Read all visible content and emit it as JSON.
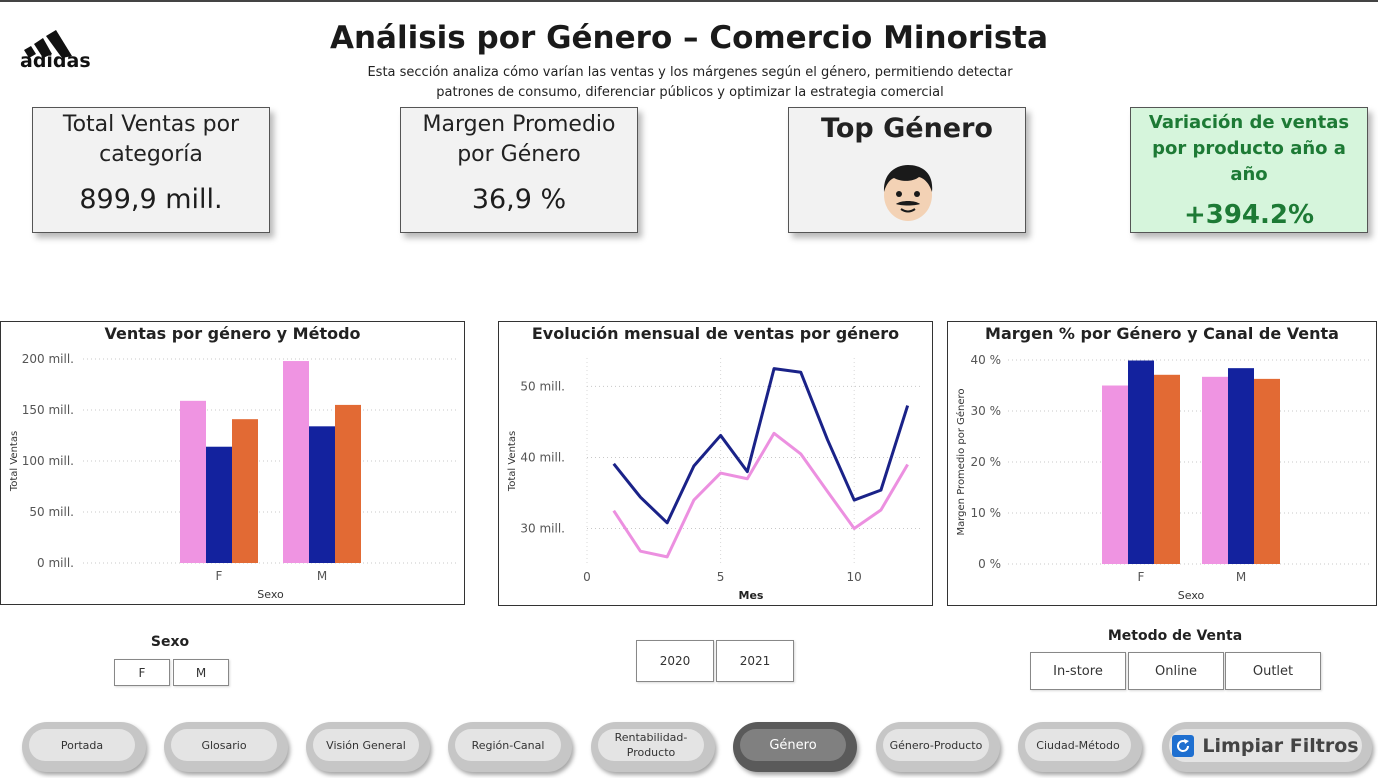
{
  "header": {
    "logo_text": "adidas",
    "title": "Análisis por Género – Comercio Minorista",
    "subtitle_line1": "Esta sección analiza cómo varían las ventas y los márgenes según el género, permitiendo detectar",
    "subtitle_line2": "patrones de consumo, diferenciar públicos y optimizar la estrategia comercial"
  },
  "kpis": {
    "total_ventas": {
      "title1": "Total Ventas por",
      "title2": "categoría",
      "value": "899,9 mill."
    },
    "margen": {
      "title1": "Margen Promedio",
      "title2": "por Género",
      "value": "36,9 %"
    },
    "top_genero": {
      "title": "Top Género",
      "icon": "male-face-icon"
    },
    "variacion": {
      "title1": "Variación de ventas",
      "title2": "por producto año a año",
      "value": "+394.2%"
    }
  },
  "colors": {
    "pink": "#ef94e2",
    "navy": "#13229e",
    "orange": "#e26a34",
    "line_navy": "#1a2288",
    "line_pink": "#ec90e0",
    "green": "#1d7a35"
  },
  "chart_data": [
    {
      "type": "bar",
      "title": "Ventas por género y Método",
      "xlabel": "Sexo",
      "ylabel": "Total Ventas",
      "categories": [
        "F",
        "M"
      ],
      "yticks": [
        "0 mill.",
        "50 mill.",
        "100 mill.",
        "150 mill.",
        "200 mill."
      ],
      "ylim": [
        0,
        200
      ],
      "series": [
        {
          "values": [
            159,
            198
          ],
          "color": "#ef94e2"
        },
        {
          "values": [
            114,
            134
          ],
          "color": "#13229e"
        },
        {
          "values": [
            141,
            155
          ],
          "color": "#e26a34"
        }
      ]
    },
    {
      "type": "line",
      "title": "Evolución mensual de ventas por género",
      "xlabel": "Mes",
      "ylabel": "Total Ventas",
      "x": [
        1,
        2,
        3,
        4,
        5,
        6,
        7,
        8,
        9,
        10,
        11,
        12
      ],
      "xticks": [
        "0",
        "5",
        "10"
      ],
      "yticks": [
        "30 mill.",
        "40 mill.",
        "50 mill."
      ],
      "ylim": [
        25,
        54
      ],
      "xlim": [
        0,
        12.5
      ],
      "series": [
        {
          "values": [
            39.1,
            34.4,
            30.8,
            38.8,
            43.1,
            38.0,
            52.5,
            52.0,
            42.5,
            34.0,
            35.4,
            47.3
          ],
          "color": "#1a2288"
        },
        {
          "values": [
            32.5,
            26.8,
            26.0,
            34.0,
            37.8,
            37.0,
            43.4,
            40.5,
            35.2,
            30.0,
            32.6,
            39.0
          ],
          "color": "#ec90e0"
        }
      ]
    },
    {
      "type": "bar",
      "title": "Margen % por Género y Canal de Venta",
      "xlabel": "Sexo",
      "ylabel": "Margen Promedio por Género",
      "categories": [
        "F",
        "M"
      ],
      "yticks": [
        "0 %",
        "10 %",
        "20 %",
        "30 %",
        "40 %"
      ],
      "ylim": [
        0,
        40
      ],
      "series": [
        {
          "values": [
            35.0,
            36.7
          ],
          "color": "#ef94e2"
        },
        {
          "values": [
            39.9,
            38.4
          ],
          "color": "#13229e"
        },
        {
          "values": [
            37.1,
            36.3
          ],
          "color": "#e26a34"
        }
      ]
    }
  ],
  "slicers": {
    "sexo": {
      "title": "Sexo",
      "options": [
        "F",
        "M"
      ]
    },
    "year": {
      "options": [
        "2020",
        "2021"
      ]
    },
    "metodo": {
      "title": "Metodo de Venta",
      "options": [
        "In-store",
        "Online",
        "Outlet"
      ]
    }
  },
  "nav": {
    "portada": "Portada",
    "glosario": "Glosario",
    "vision": "Visión General",
    "region": "Región-Canal",
    "rent1": "Rentabilidad-",
    "rent2": "Producto",
    "genero": "Género",
    "genero_producto": "Género-Producto",
    "ciudad": "Ciudad-Método",
    "clear": "Limpiar Filtros"
  }
}
